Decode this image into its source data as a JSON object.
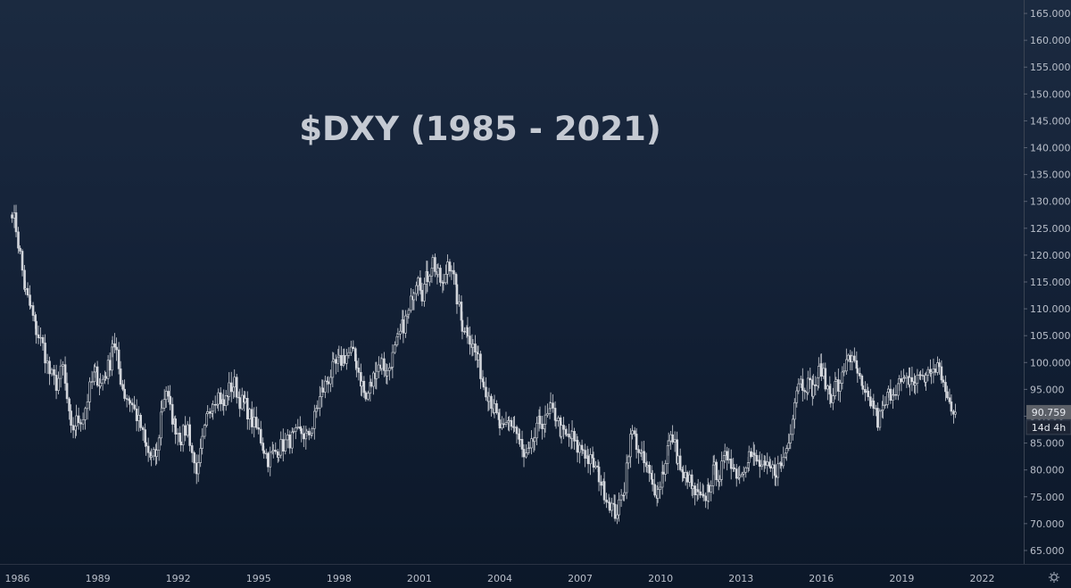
{
  "chart_data": {
    "type": "candlestick",
    "title": "$DXY (1985 - 2021)",
    "ylim": [
      62.5,
      167.5
    ],
    "y_ticks": [
      "65.000",
      "70.000",
      "75.000",
      "80.000",
      "85.000",
      "90.000",
      "95.000",
      "100.000",
      "105.000",
      "110.000",
      "115.000",
      "120.000",
      "125.000",
      "130.000",
      "135.000",
      "140.000",
      "145.000",
      "150.000",
      "155.000",
      "160.000",
      "165.000"
    ],
    "xlim": [
      1985.35,
      2023.55
    ],
    "x_ticks": [
      "1986",
      "1989",
      "1992",
      "1995",
      "1998",
      "2001",
      "2004",
      "2007",
      "2010",
      "2013",
      "2016",
      "2019",
      "2022"
    ],
    "last_price": "90.759",
    "countdown": "14d 4h",
    "grid": false,
    "series": [
      {
        "values": [
          [
            1985.8,
            128.5
          ],
          [
            1985.95,
            125.0
          ],
          [
            1986.1,
            120.0
          ],
          [
            1986.3,
            113.0
          ],
          [
            1986.5,
            110.0
          ],
          [
            1986.7,
            106.0
          ],
          [
            1986.95,
            103.0
          ],
          [
            1987.2,
            98.0
          ],
          [
            1987.45,
            96.0
          ],
          [
            1987.7,
            99.0
          ],
          [
            1987.85,
            93.0
          ],
          [
            1988.0,
            87.0
          ],
          [
            1988.2,
            89.0
          ],
          [
            1988.45,
            90.0
          ],
          [
            1988.7,
            95.0
          ],
          [
            1988.9,
            98.0
          ],
          [
            1989.1,
            96.0
          ],
          [
            1989.3,
            98.0
          ],
          [
            1989.45,
            100.0
          ],
          [
            1989.55,
            104.0
          ],
          [
            1989.7,
            101.0
          ],
          [
            1989.85,
            97.0
          ],
          [
            1990.0,
            94.0
          ],
          [
            1990.2,
            93.0
          ],
          [
            1990.45,
            90.0
          ],
          [
            1990.6,
            88.0
          ],
          [
            1990.8,
            84.0
          ],
          [
            1991.0,
            82.0
          ],
          [
            1991.2,
            83.0
          ],
          [
            1991.4,
            92.0
          ],
          [
            1991.55,
            95.0
          ],
          [
            1991.7,
            91.0
          ],
          [
            1991.9,
            88.0
          ],
          [
            1992.1,
            86.0
          ],
          [
            1992.35,
            88.0
          ],
          [
            1992.6,
            81.0
          ],
          [
            1992.75,
            80.0
          ],
          [
            1992.9,
            85.0
          ],
          [
            1993.1,
            90.0
          ],
          [
            1993.3,
            93.0
          ],
          [
            1993.5,
            94.0
          ],
          [
            1993.7,
            92.0
          ],
          [
            1993.9,
            95.0
          ],
          [
            1994.1,
            96.0
          ],
          [
            1994.3,
            93.0
          ],
          [
            1994.5,
            92.0
          ],
          [
            1994.75,
            89.0
          ],
          [
            1995.0,
            87.0
          ],
          [
            1995.2,
            84.0
          ],
          [
            1995.35,
            82.0
          ],
          [
            1995.55,
            83.0
          ],
          [
            1995.75,
            84.0
          ],
          [
            1996.0,
            85.0
          ],
          [
            1996.3,
            86.0
          ],
          [
            1996.6,
            87.0
          ],
          [
            1996.8,
            86.0
          ],
          [
            1997.0,
            88.0
          ],
          [
            1997.2,
            92.0
          ],
          [
            1997.4,
            95.0
          ],
          [
            1997.6,
            97.0
          ],
          [
            1997.8,
            99.0
          ],
          [
            1998.0,
            100.0
          ],
          [
            1998.2,
            101.0
          ],
          [
            1998.45,
            102.0
          ],
          [
            1998.65,
            100.0
          ],
          [
            1998.85,
            96.0
          ],
          [
            1999.0,
            93.0
          ],
          [
            1999.2,
            96.0
          ],
          [
            1999.4,
            99.0
          ],
          [
            1999.6,
            100.0
          ],
          [
            1999.8,
            98.0
          ],
          [
            2000.0,
            101.0
          ],
          [
            2000.2,
            104.0
          ],
          [
            2000.4,
            107.0
          ],
          [
            2000.6,
            109.0
          ],
          [
            2000.8,
            114.0
          ],
          [
            2000.95,
            117.0
          ],
          [
            2001.1,
            113.0
          ],
          [
            2001.3,
            116.0
          ],
          [
            2001.5,
            119.0
          ],
          [
            2001.7,
            116.0
          ],
          [
            2001.9,
            114.0
          ],
          [
            2002.05,
            119.0
          ],
          [
            2002.2,
            118.0
          ],
          [
            2002.4,
            112.0
          ],
          [
            2002.6,
            107.0
          ],
          [
            2002.8,
            106.0
          ],
          [
            2003.0,
            103.0
          ],
          [
            2003.2,
            100.0
          ],
          [
            2003.4,
            96.0
          ],
          [
            2003.6,
            94.0
          ],
          [
            2003.8,
            91.0
          ],
          [
            2004.0,
            88.0
          ],
          [
            2004.15,
            87.0
          ],
          [
            2004.35,
            89.0
          ],
          [
            2004.55,
            88.0
          ],
          [
            2004.75,
            85.0
          ],
          [
            2004.9,
            82.0
          ],
          [
            2005.1,
            83.0
          ],
          [
            2005.3,
            86.0
          ],
          [
            2005.5,
            89.0
          ],
          [
            2005.7,
            89.0
          ],
          [
            2005.9,
            91.0
          ],
          [
            2006.1,
            90.0
          ],
          [
            2006.3,
            87.0
          ],
          [
            2006.5,
            86.0
          ],
          [
            2006.7,
            86.0
          ],
          [
            2006.9,
            84.0
          ],
          [
            2007.1,
            84.0
          ],
          [
            2007.3,
            82.0
          ],
          [
            2007.5,
            81.0
          ],
          [
            2007.7,
            79.0
          ],
          [
            2007.9,
            76.0
          ],
          [
            2008.1,
            74.0
          ],
          [
            2008.3,
            72.0
          ],
          [
            2008.45,
            73.0
          ],
          [
            2008.65,
            77.0
          ],
          [
            2008.8,
            84.0
          ],
          [
            2008.95,
            87.0
          ],
          [
            2009.1,
            85.0
          ],
          [
            2009.3,
            82.0
          ],
          [
            2009.5,
            80.0
          ],
          [
            2009.7,
            77.0
          ],
          [
            2009.9,
            76.0
          ],
          [
            2010.1,
            80.0
          ],
          [
            2010.3,
            85.0
          ],
          [
            2010.45,
            86.0
          ],
          [
            2010.65,
            82.0
          ],
          [
            2010.85,
            78.0
          ],
          [
            2011.0,
            79.0
          ],
          [
            2011.2,
            76.0
          ],
          [
            2011.4,
            75.0
          ],
          [
            2011.6,
            74.0
          ],
          [
            2011.8,
            77.0
          ],
          [
            2012.0,
            80.0
          ],
          [
            2012.2,
            79.0
          ],
          [
            2012.4,
            82.0
          ],
          [
            2012.55,
            83.0
          ],
          [
            2012.75,
            80.0
          ],
          [
            2012.95,
            79.0
          ],
          [
            2013.1,
            81.0
          ],
          [
            2013.3,
            83.0
          ],
          [
            2013.5,
            82.0
          ],
          [
            2013.7,
            81.0
          ],
          [
            2013.9,
            80.0
          ],
          [
            2014.1,
            80.0
          ],
          [
            2014.3,
            80.0
          ],
          [
            2014.5,
            81.0
          ],
          [
            2014.7,
            84.0
          ],
          [
            2014.85,
            88.0
          ],
          [
            2015.0,
            93.0
          ],
          [
            2015.15,
            97.0
          ],
          [
            2015.3,
            96.0
          ],
          [
            2015.5,
            96.0
          ],
          [
            2015.7,
            95.0
          ],
          [
            2015.9,
            98.0
          ],
          [
            2016.0,
            99.0
          ],
          [
            2016.15,
            96.0
          ],
          [
            2016.35,
            94.0
          ],
          [
            2016.55,
            96.0
          ],
          [
            2016.7,
            95.0
          ],
          [
            2016.85,
            99.0
          ],
          [
            2017.0,
            102.0
          ],
          [
            2017.15,
            100.0
          ],
          [
            2017.35,
            98.0
          ],
          [
            2017.55,
            94.0
          ],
          [
            2017.75,
            93.0
          ],
          [
            2017.95,
            92.0
          ],
          [
            2018.1,
            89.0
          ],
          [
            2018.3,
            91.0
          ],
          [
            2018.5,
            94.0
          ],
          [
            2018.7,
            95.0
          ],
          [
            2018.9,
            96.0
          ],
          [
            2019.1,
            96.0
          ],
          [
            2019.3,
            97.0
          ],
          [
            2019.5,
            96.0
          ],
          [
            2019.7,
            98.0
          ],
          [
            2019.9,
            97.0
          ],
          [
            2020.1,
            99.0
          ],
          [
            2020.25,
            98.0
          ],
          [
            2020.4,
            99.0
          ],
          [
            2020.55,
            96.0
          ],
          [
            2020.7,
            93.0
          ],
          [
            2020.85,
            92.0
          ],
          [
            2021.0,
            90.76
          ]
        ]
      }
    ]
  },
  "ui": {
    "bg_top": "#1b2a40",
    "bg_bottom": "#0c1829",
    "candle_color": "#d3d6dc",
    "price_label_bg": "#5c6068",
    "timer_bg": "#1c2434",
    "settings_icon": "gear-icon"
  }
}
